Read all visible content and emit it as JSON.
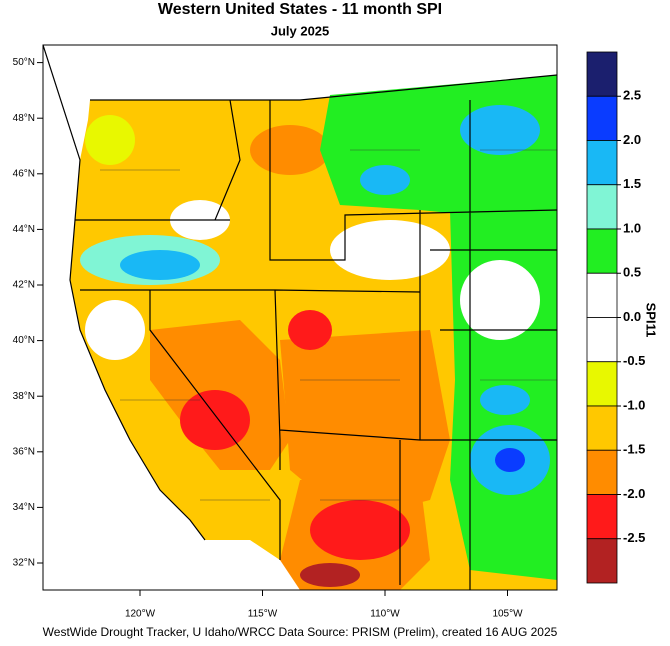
{
  "title": "Western United States - 11 month SPI",
  "subtitle": "July 2025",
  "map": {
    "lat_ticks": [
      {
        "value": 50,
        "label": "50°N"
      },
      {
        "value": 48,
        "label": "48°N"
      },
      {
        "value": 46,
        "label": "46°N"
      },
      {
        "value": 44,
        "label": "44°N"
      },
      {
        "value": 42,
        "label": "42°N"
      },
      {
        "value": 40,
        "label": "40°N"
      },
      {
        "value": 38,
        "label": "38°N"
      },
      {
        "value": 36,
        "label": "36°N"
      },
      {
        "value": 34,
        "label": "34°N"
      },
      {
        "value": 32,
        "label": "32°N"
      }
    ],
    "lon_ticks": [
      {
        "value": -120,
        "label": "120°W"
      },
      {
        "value": -115,
        "label": "115°W"
      },
      {
        "value": -110,
        "label": "110°W"
      },
      {
        "value": -105,
        "label": "105°W"
      }
    ]
  },
  "colorbar": {
    "title": "SPI11",
    "ticks": [
      {
        "value": 2.5,
        "label": "2.5"
      },
      {
        "value": 2,
        "label": "2.0"
      },
      {
        "value": 1.5,
        "label": "1.5"
      },
      {
        "value": 1,
        "label": "1.0"
      },
      {
        "value": 0.5,
        "label": "0.5"
      },
      {
        "value": 0,
        "label": "0.0"
      },
      {
        "value": -0.5,
        "label": "-0.5"
      },
      {
        "value": -1,
        "label": "-1.0"
      },
      {
        "value": -1.5,
        "label": "-1.5"
      },
      {
        "value": -2,
        "label": "-2.0"
      },
      {
        "value": -2.5,
        "label": "-2.5"
      }
    ],
    "colors": [
      "#1b1f6e",
      "#0a3cff",
      "#19b8f5",
      "#80f5d5",
      "#22ee22",
      "#ffffff",
      "#ffffff",
      "#e8f800",
      "#ffc800",
      "#ff8c00",
      "#ff1a1a",
      "#b22222"
    ]
  },
  "credit": "WestWide Drought Tracker, U Idaho/WRCC Data Source: PRISM (Prelim), created 16 AUG 2025"
}
